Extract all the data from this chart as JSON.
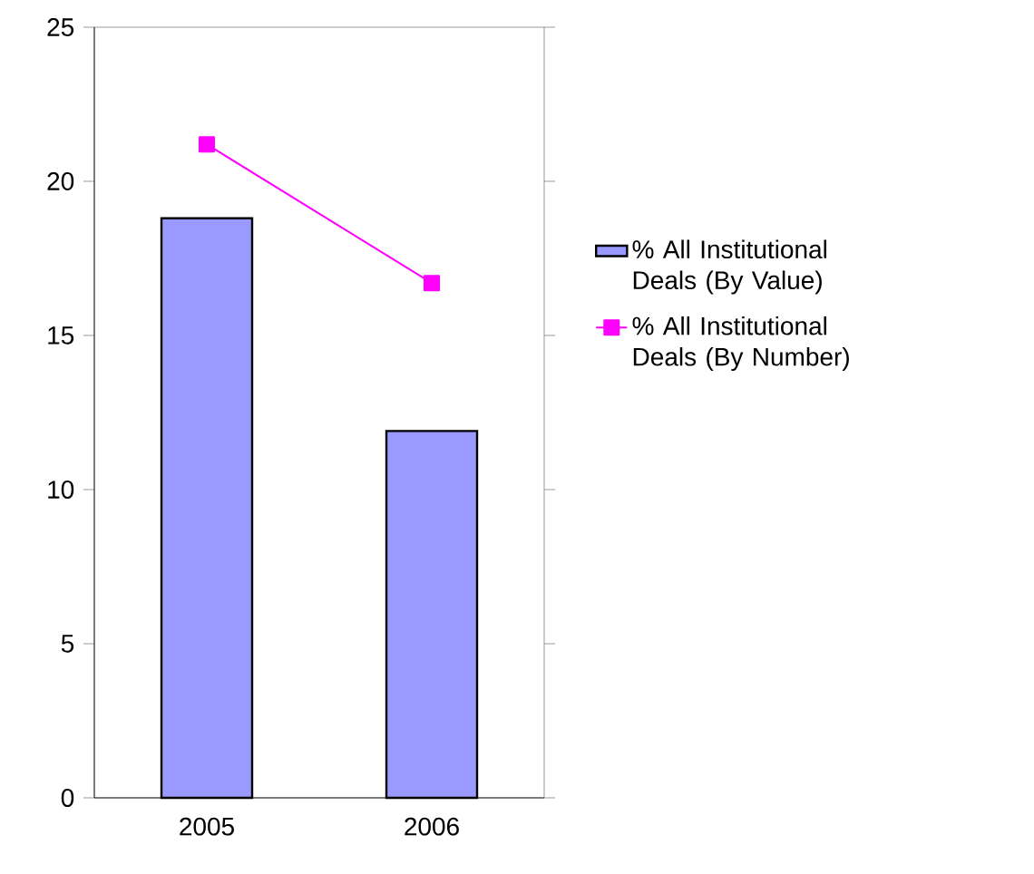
{
  "chart_data": {
    "type": "bar",
    "categories": [
      "2005",
      "2006"
    ],
    "series": [
      {
        "name": "% All Institutional Deals (By Value)",
        "color": "#9999ff",
        "values": [
          18.8,
          11.9
        ]
      },
      {
        "name": "% All Institutional Deals (By Number)",
        "type": "line",
        "color": "#ff00ff",
        "marker": "square",
        "values": [
          21.2,
          16.7
        ]
      }
    ],
    "ylim": [
      0,
      25
    ],
    "yticks": [
      0,
      5,
      10,
      15,
      20,
      25
    ],
    "legend": "right"
  }
}
